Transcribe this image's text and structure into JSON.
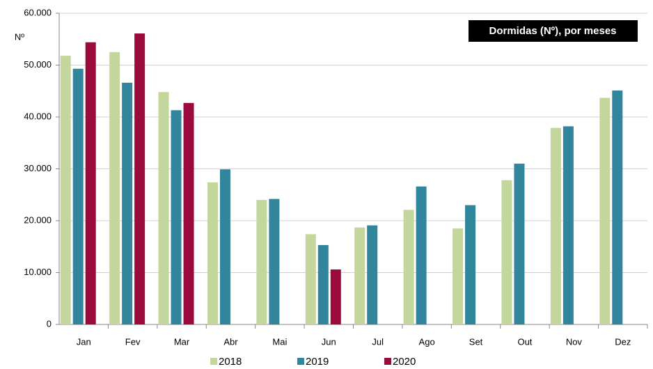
{
  "chart_data": {
    "type": "bar",
    "title": "Dormidas (Nº), por meses",
    "y_label": "Nº",
    "categories": [
      "Jan",
      "Fev",
      "Mar",
      "Abr",
      "Mai",
      "Jun",
      "Jul",
      "Ago",
      "Set",
      "Out",
      "Nov",
      "Dez"
    ],
    "series": [
      {
        "name": "2018",
        "color": "#c3d69b",
        "values": [
          51800,
          52500,
          44800,
          27400,
          24000,
          17400,
          18700,
          22100,
          18500,
          27800,
          37900,
          43700
        ]
      },
      {
        "name": "2019",
        "color": "#31859c",
        "values": [
          49300,
          46600,
          41300,
          29900,
          24200,
          15300,
          19100,
          26600,
          23000,
          31000,
          38200,
          45100
        ]
      },
      {
        "name": "2020",
        "color": "#9b0a3c",
        "values": [
          54400,
          56100,
          42700,
          null,
          null,
          10600,
          null,
          null,
          null,
          null,
          null,
          null
        ]
      }
    ],
    "ylim": [
      0,
      60000
    ],
    "yticks": [
      0,
      {
        "value": 10000,
        "label": "10.000"
      },
      {
        "value": 20000,
        "label": "20.000"
      },
      {
        "value": 30000,
        "label": "30.000"
      },
      {
        "value": 40000,
        "label": "40.000"
      },
      {
        "value": 50000,
        "label": "50.000"
      },
      {
        "value": 60000,
        "label": "60.000"
      }
    ],
    "grid": true,
    "legend": "bottom"
  }
}
